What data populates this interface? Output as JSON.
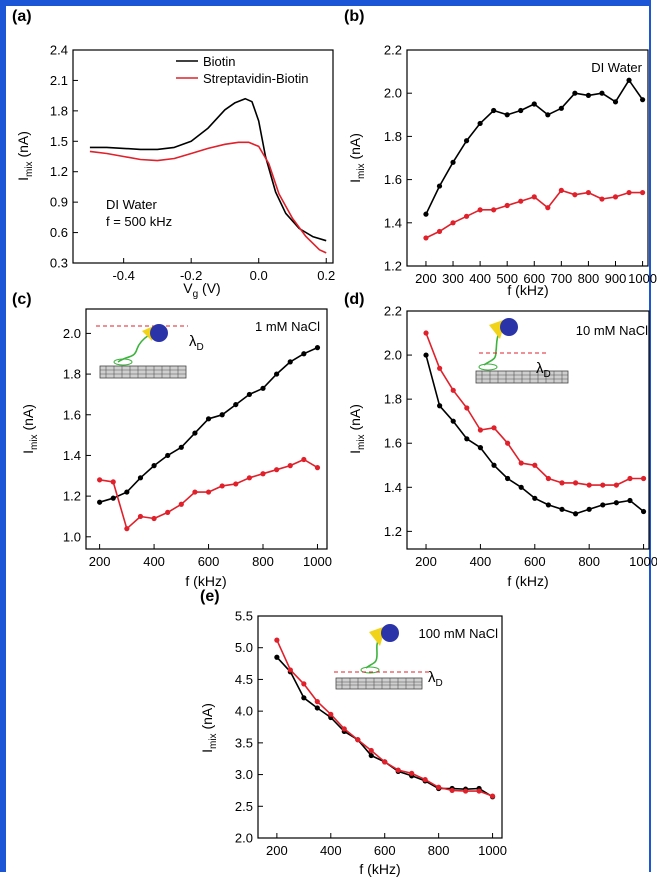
{
  "chart_data": [
    {
      "panel": "(a)",
      "type": "line",
      "xlabel": "V",
      "xlabel_sub": "g",
      "xlabel_unit": " (V)",
      "ylabel": "I",
      "ylabel_sub": "mix",
      "ylabel_unit": " (nA)",
      "xlim": [
        -0.55,
        0.22
      ],
      "ylim": [
        0.3,
        2.4
      ],
      "xticks": [
        -0.4,
        -0.2,
        0.0,
        0.2
      ],
      "xticklabels": [
        "-0.4",
        "-0.2",
        "0.0",
        "0.2"
      ],
      "yticks": [
        0.3,
        0.6,
        0.9,
        1.2,
        1.5,
        1.8,
        2.1,
        2.4
      ],
      "yticklabels": [
        "0.3",
        "0.6",
        "0.9",
        "1.2",
        "1.5",
        "1.8",
        "2.1",
        "2.4"
      ],
      "annotations": [
        "DI Water",
        "f = 500 kHz"
      ],
      "legend": "top-right",
      "series": [
        {
          "name": "Biotin",
          "color": "#000000",
          "x": [
            -0.5,
            -0.45,
            -0.4,
            -0.35,
            -0.3,
            -0.25,
            -0.2,
            -0.15,
            -0.1,
            -0.07,
            -0.04,
            -0.02,
            0.0,
            0.02,
            0.05,
            0.08,
            0.12,
            0.16,
            0.2
          ],
          "y": [
            1.44,
            1.44,
            1.43,
            1.42,
            1.42,
            1.44,
            1.5,
            1.63,
            1.81,
            1.88,
            1.92,
            1.89,
            1.7,
            1.35,
            1.0,
            0.79,
            0.64,
            0.56,
            0.52
          ]
        },
        {
          "name": "Streptavidin-Biotin",
          "color": "#e0202a",
          "x": [
            -0.5,
            -0.45,
            -0.4,
            -0.35,
            -0.3,
            -0.25,
            -0.2,
            -0.15,
            -0.1,
            -0.06,
            -0.03,
            0.0,
            0.03,
            0.06,
            0.1,
            0.14,
            0.18,
            0.2
          ],
          "y": [
            1.4,
            1.38,
            1.35,
            1.32,
            1.31,
            1.33,
            1.38,
            1.43,
            1.47,
            1.49,
            1.49,
            1.45,
            1.28,
            0.98,
            0.74,
            0.56,
            0.43,
            0.4
          ]
        }
      ]
    },
    {
      "panel": "(b)",
      "type": "line",
      "xlabel": "f (kHz)",
      "ylabel": "I",
      "ylabel_sub": "mix",
      "ylabel_unit": " (nA)",
      "xlim": [
        130,
        1020
      ],
      "ylim": [
        1.2,
        2.2
      ],
      "xticks": [
        200,
        300,
        400,
        500,
        600,
        700,
        800,
        900,
        1000
      ],
      "xticklabels": [
        "200",
        "300",
        "400",
        "500",
        "600",
        "700",
        "800",
        "900",
        "1000"
      ],
      "yticks": [
        1.2,
        1.4,
        1.6,
        1.8,
        2.0,
        2.2
      ],
      "yticklabels": [
        "1.2",
        "1.4",
        "1.6",
        "1.8",
        "2.0",
        "2.2"
      ],
      "annotations": [
        "DI Water"
      ],
      "series": [
        {
          "color": "#000000",
          "x": [
            200,
            250,
            300,
            350,
            400,
            450,
            500,
            550,
            600,
            650,
            700,
            750,
            800,
            850,
            900,
            950,
            1000
          ],
          "y": [
            1.44,
            1.57,
            1.68,
            1.78,
            1.86,
            1.92,
            1.9,
            1.92,
            1.95,
            1.9,
            1.93,
            2.0,
            1.99,
            2.0,
            1.96,
            2.06,
            1.97
          ]
        },
        {
          "color": "#e0202a",
          "x": [
            200,
            250,
            300,
            350,
            400,
            450,
            500,
            550,
            600,
            650,
            700,
            750,
            800,
            850,
            900,
            950,
            1000
          ],
          "y": [
            1.33,
            1.36,
            1.4,
            1.43,
            1.46,
            1.46,
            1.48,
            1.5,
            1.52,
            1.47,
            1.55,
            1.53,
            1.54,
            1.51,
            1.52,
            1.54,
            1.54
          ]
        }
      ]
    },
    {
      "panel": "(c)",
      "type": "line",
      "xlabel": "f (kHz)",
      "ylabel": "I",
      "ylabel_sub": "mix",
      "ylabel_unit": " (nA)",
      "xlim": [
        150,
        1035
      ],
      "ylim": [
        0.94,
        2.12
      ],
      "xticks": [
        200,
        400,
        600,
        800,
        1000
      ],
      "xticklabels": [
        "200",
        "400",
        "600",
        "800",
        "1000"
      ],
      "yticks": [
        1.0,
        1.2,
        1.4,
        1.6,
        1.8,
        2.0
      ],
      "yticklabels": [
        "1.0",
        "1.2",
        "1.4",
        "1.6",
        "1.8",
        "2.0"
      ],
      "annotations": [
        "1 mM NaCl",
        "λ",
        "D"
      ],
      "series": [
        {
          "color": "#000000",
          "x": [
            200,
            250,
            300,
            350,
            400,
            450,
            500,
            550,
            600,
            650,
            700,
            750,
            800,
            850,
            900,
            950,
            1000
          ],
          "y": [
            1.17,
            1.19,
            1.22,
            1.29,
            1.35,
            1.4,
            1.44,
            1.51,
            1.58,
            1.6,
            1.65,
            1.7,
            1.73,
            1.8,
            1.86,
            1.9,
            1.93
          ]
        },
        {
          "color": "#e0202a",
          "x": [
            200,
            250,
            300,
            350,
            400,
            450,
            500,
            550,
            600,
            650,
            700,
            750,
            800,
            850,
            900,
            950,
            1000
          ],
          "y": [
            1.28,
            1.27,
            1.04,
            1.1,
            1.09,
            1.12,
            1.16,
            1.22,
            1.22,
            1.25,
            1.26,
            1.29,
            1.31,
            1.33,
            1.35,
            1.38,
            1.34
          ]
        }
      ]
    },
    {
      "panel": "(d)",
      "type": "line",
      "xlabel": "f (kHz)",
      "ylabel": "I",
      "ylabel_sub": "mix",
      "ylabel_unit": " (nA)",
      "xlim": [
        130,
        1020
      ],
      "ylim": [
        1.12,
        2.2
      ],
      "xticks": [
        200,
        400,
        600,
        800,
        1000
      ],
      "xticklabels": [
        "200",
        "400",
        "600",
        "800",
        "1000"
      ],
      "yticks": [
        1.2,
        1.4,
        1.6,
        1.8,
        2.0,
        2.2
      ],
      "yticklabels": [
        "1.2",
        "1.4",
        "1.6",
        "1.8",
        "2.0",
        "2.2"
      ],
      "annotations": [
        "10 mM NaCl",
        "λ",
        "D"
      ],
      "series": [
        {
          "color": "#000000",
          "x": [
            200,
            250,
            300,
            350,
            400,
            450,
            500,
            550,
            600,
            650,
            700,
            750,
            800,
            850,
            900,
            950,
            1000
          ],
          "y": [
            2.0,
            1.77,
            1.7,
            1.62,
            1.58,
            1.5,
            1.44,
            1.4,
            1.35,
            1.32,
            1.3,
            1.28,
            1.3,
            1.32,
            1.33,
            1.34,
            1.29
          ]
        },
        {
          "color": "#e0202a",
          "x": [
            200,
            250,
            300,
            350,
            400,
            450,
            500,
            550,
            600,
            650,
            700,
            750,
            800,
            850,
            900,
            950,
            1000
          ],
          "y": [
            2.1,
            1.94,
            1.84,
            1.76,
            1.66,
            1.67,
            1.6,
            1.51,
            1.5,
            1.44,
            1.42,
            1.42,
            1.41,
            1.41,
            1.41,
            1.44,
            1.44
          ]
        }
      ]
    },
    {
      "panel": "(e)",
      "type": "line",
      "xlabel": "f (kHz)",
      "ylabel": "I",
      "ylabel_sub": "mix",
      "ylabel_unit": " (nA)",
      "xlim": [
        130,
        1035
      ],
      "ylim": [
        2.0,
        5.5
      ],
      "xticks": [
        200,
        400,
        600,
        800,
        1000
      ],
      "xticklabels": [
        "200",
        "400",
        "600",
        "800",
        "1000"
      ],
      "yticks": [
        2.0,
        2.5,
        3.0,
        3.5,
        4.0,
        4.5,
        5.0,
        5.5
      ],
      "yticklabels": [
        "2.0",
        "2.5",
        "3.0",
        "3.5",
        "4.0",
        "4.5",
        "5.0",
        "5.5"
      ],
      "annotations": [
        "100 mM NaCl",
        "λ",
        "D"
      ],
      "series": [
        {
          "color": "#000000",
          "x": [
            200,
            250,
            300,
            350,
            400,
            450,
            500,
            550,
            600,
            650,
            700,
            750,
            800,
            850,
            900,
            950,
            1000
          ],
          "y": [
            4.85,
            4.62,
            4.21,
            4.05,
            3.9,
            3.68,
            3.55,
            3.3,
            3.2,
            3.05,
            2.98,
            2.9,
            2.78,
            2.78,
            2.77,
            2.78,
            2.65
          ]
        },
        {
          "color": "#e0202a",
          "x": [
            200,
            250,
            300,
            350,
            400,
            450,
            500,
            550,
            600,
            650,
            700,
            750,
            800,
            850,
            900,
            950,
            1000
          ],
          "y": [
            5.12,
            4.65,
            4.43,
            4.15,
            3.95,
            3.72,
            3.55,
            3.38,
            3.2,
            3.07,
            3.02,
            2.92,
            2.8,
            2.75,
            2.74,
            2.74,
            2.66
          ]
        }
      ]
    }
  ]
}
